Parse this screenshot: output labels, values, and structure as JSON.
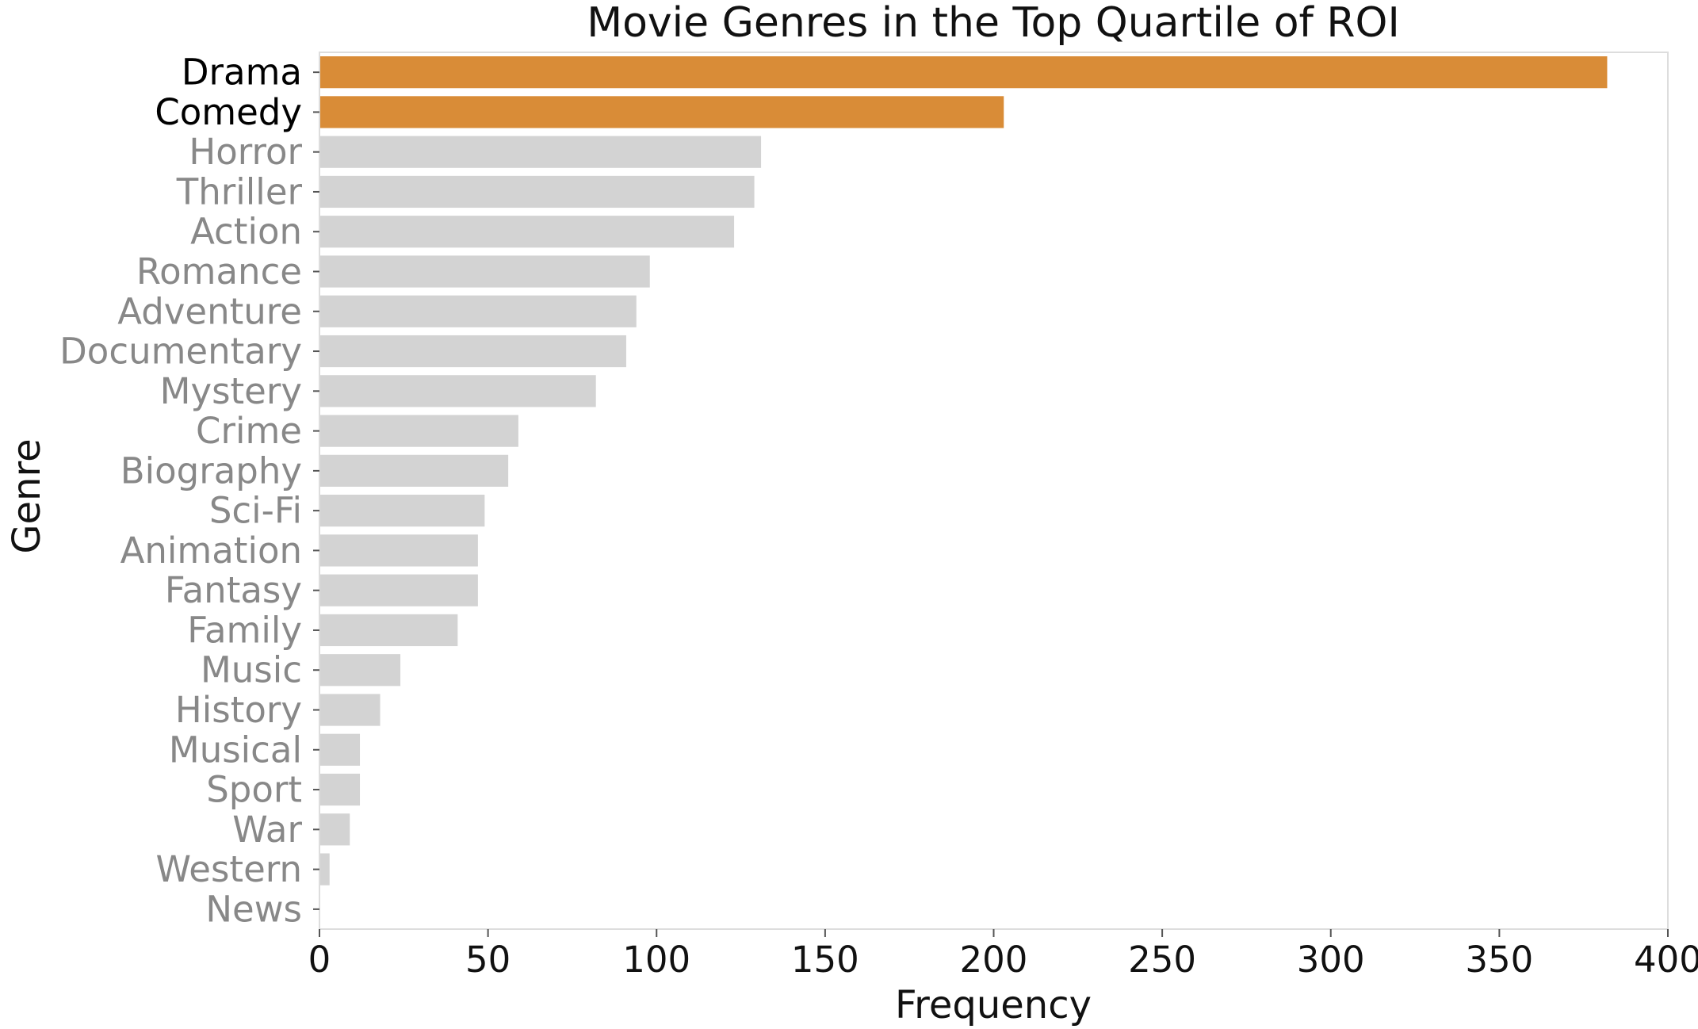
{
  "chart_data": {
    "type": "bar",
    "orientation": "horizontal",
    "title": "Movie Genres in the Top Quartile of ROI",
    "xlabel": "Frequency",
    "ylabel": "Genre",
    "xlim": [
      0,
      400
    ],
    "xticks": [
      0,
      50,
      100,
      150,
      200,
      250,
      300,
      350,
      400
    ],
    "grid": false,
    "categories": [
      "Drama",
      "Comedy",
      "Horror",
      "Thriller",
      "Action",
      "Romance",
      "Adventure",
      "Documentary",
      "Mystery",
      "Crime",
      "Biography",
      "Sci-Fi",
      "Animation",
      "Fantasy",
      "Family",
      "Music",
      "History",
      "Musical",
      "Sport",
      "War",
      "Western",
      "News"
    ],
    "values": [
      382,
      203,
      131,
      129,
      123,
      98,
      94,
      91,
      82,
      59,
      56,
      49,
      47,
      47,
      41,
      24,
      18,
      12,
      12,
      9,
      3,
      0
    ],
    "highlighted": [
      "Drama",
      "Comedy"
    ],
    "colors": {
      "highlight": "#d98c37",
      "default": "#d3d3d3",
      "highlight_label": "#000000",
      "default_label": "#888888",
      "axis_text": "#111111",
      "spine": "#dddddd"
    }
  }
}
